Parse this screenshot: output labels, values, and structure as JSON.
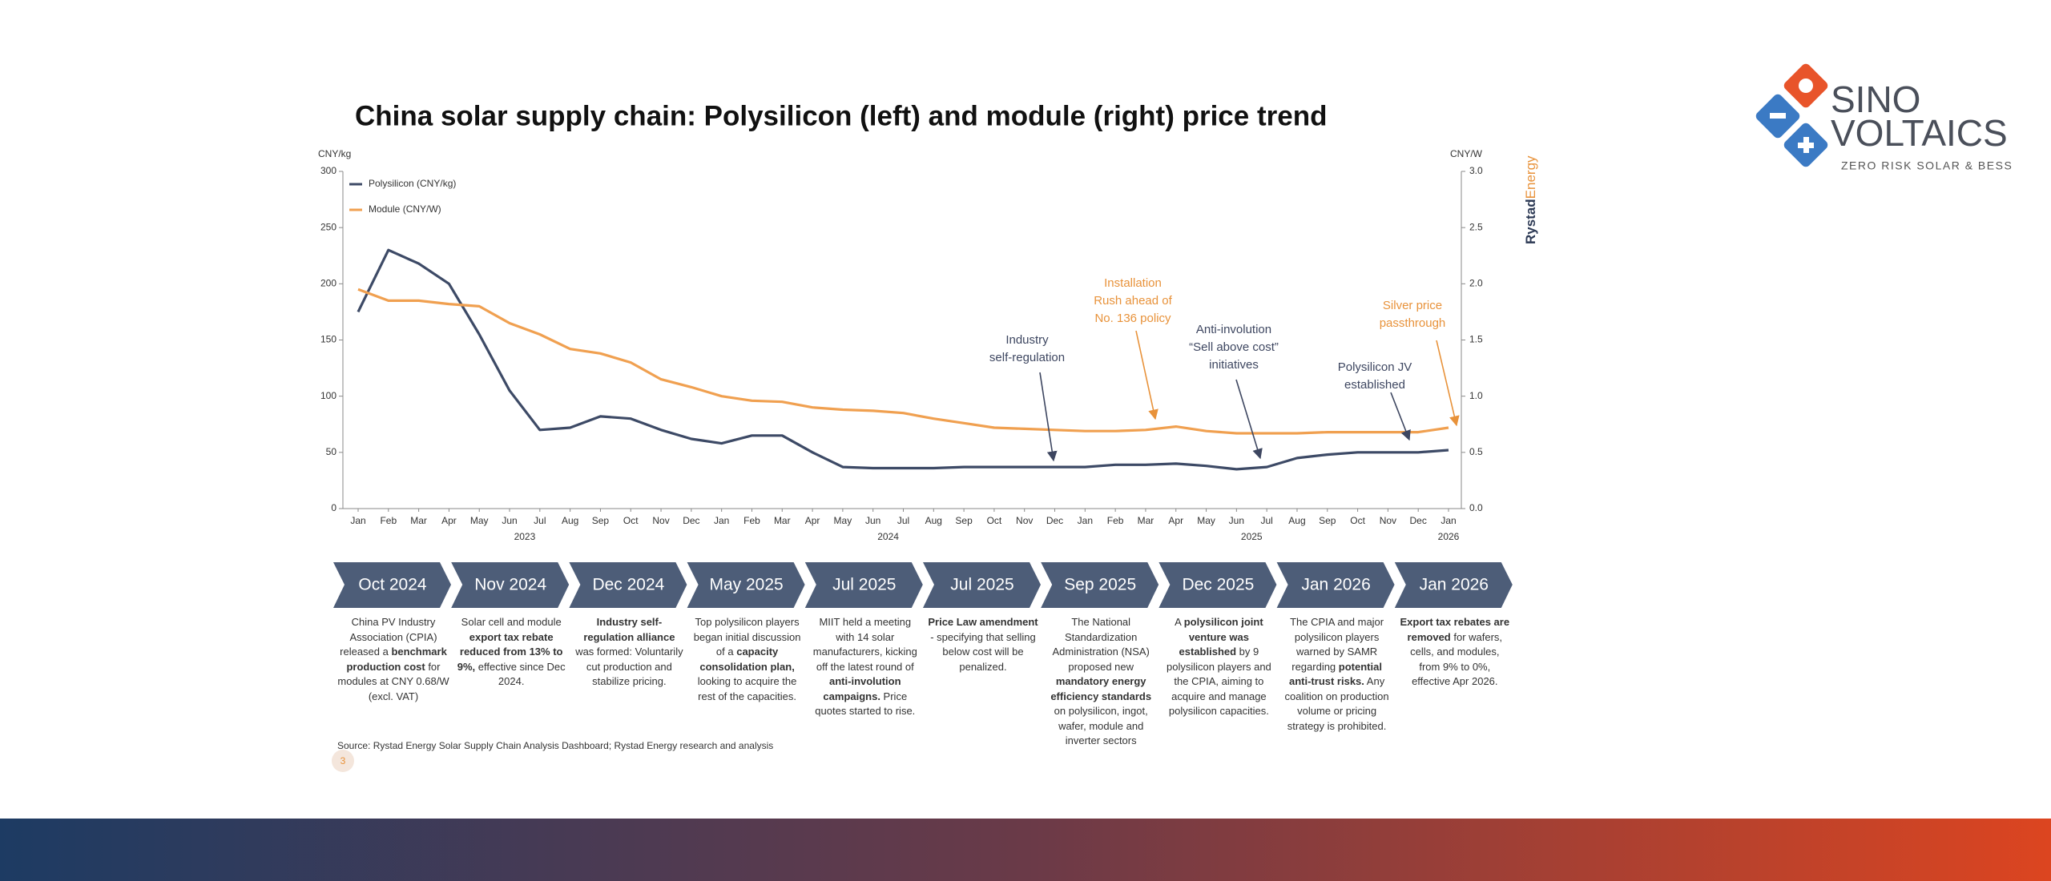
{
  "chart_data": {
    "type": "line",
    "title": "China solar supply chain: Polysilicon (left) and module (right) price trend",
    "y_label": "CNY/kg",
    "y2_label": "CNY/W",
    "categories": [
      "Jan",
      "Feb",
      "Mar",
      "Apr",
      "May",
      "Jun",
      "Jul",
      "Aug",
      "Sep",
      "Oct",
      "Nov",
      "Dec",
      "Jan",
      "Feb",
      "Mar",
      "Apr",
      "May",
      "Jun",
      "Jul",
      "Aug",
      "Sep",
      "Oct",
      "Nov",
      "Dec",
      "Jan",
      "Feb",
      "Mar",
      "Apr",
      "May",
      "Jun",
      "Jul",
      "Aug",
      "Sep",
      "Oct",
      "Nov",
      "Dec",
      "Jan"
    ],
    "year_labels": [
      "2023",
      "2024",
      "2025",
      "2026"
    ],
    "series": [
      {
        "name": "Polysilicon (CNY/kg)",
        "color": "#3d4a66",
        "axis": "y",
        "values": [
          175,
          230,
          218,
          200,
          155,
          105,
          70,
          72,
          82,
          80,
          70,
          62,
          58,
          65,
          65,
          50,
          37,
          36,
          36,
          36,
          37,
          37,
          37,
          37,
          37,
          39,
          39,
          40,
          38,
          35,
          37,
          45,
          48,
          50,
          50,
          50,
          52
        ]
      },
      {
        "name": "Module (CNY/W)",
        "color": "#f0a050",
        "axis": "y2",
        "values": [
          1.95,
          1.85,
          1.85,
          1.82,
          1.8,
          1.65,
          1.55,
          1.42,
          1.38,
          1.3,
          1.15,
          1.08,
          1.0,
          0.96,
          0.95,
          0.9,
          0.88,
          0.87,
          0.85,
          0.8,
          0.76,
          0.72,
          0.71,
          0.7,
          0.69,
          0.69,
          0.7,
          0.73,
          0.69,
          0.67,
          0.67,
          0.67,
          0.68,
          0.68,
          0.68,
          0.68,
          0.72
        ]
      }
    ],
    "ylim": [
      0,
      300
    ],
    "yticks": [
      0,
      50,
      100,
      150,
      200,
      250,
      300
    ],
    "y2lim": [
      0,
      3
    ],
    "y2ticks": [
      {
        "value": 0,
        "label": "0.0"
      },
      0.5,
      {
        "value": 1,
        "label": "1.0"
      },
      1.5,
      {
        "value": 2,
        "label": "2.0"
      },
      2.5,
      {
        "value": 3,
        "label": "3.0"
      }
    ],
    "annotations": [
      {
        "lines": [
          "Industry",
          "self-regulation"
        ],
        "color": "#3d4660"
      },
      {
        "lines": [
          "Installation",
          "Rush ahead of",
          "No. 136 policy"
        ],
        "color": "#e8923a"
      },
      {
        "lines": [
          "Anti-involution",
          "“Sell above cost”",
          "initiatives"
        ],
        "color": "#3d4660"
      },
      {
        "lines": [
          "Polysilicon JV",
          "established"
        ],
        "color": "#3d4660"
      },
      {
        "lines": [
          "Silver price",
          "passthrough"
        ],
        "color": "#e8923a"
      }
    ]
  },
  "timeline": [
    {
      "date": "Oct 2024",
      "parts": [
        {
          "text": "China PV Industry Association (CPIA) released a ",
          "bold": false
        },
        {
          "text": "benchmark production cost",
          "bold": true
        },
        {
          "text": " for modules at CNY 0.68/W (excl. VAT)",
          "bold": false
        }
      ]
    },
    {
      "date": "Nov 2024",
      "parts": [
        {
          "text": "Solar cell and module ",
          "bold": false
        },
        {
          "text": "export tax rebate reduced from 13% to 9%,",
          "bold": true
        },
        {
          "text": " effective since Dec 2024.",
          "bold": false
        }
      ]
    },
    {
      "date": "Dec 2024",
      "parts": [
        {
          "text": "Industry self-regulation alliance",
          "bold": true
        },
        {
          "text": " was formed: Voluntarily cut production and stabilize pricing.",
          "bold": false
        }
      ]
    },
    {
      "date": "May 2025",
      "parts": [
        {
          "text": "Top polysilicon players began initial discussion of a ",
          "bold": false
        },
        {
          "text": "capacity consolidation plan,",
          "bold": true
        },
        {
          "text": " looking to acquire the rest of the capacities.",
          "bold": false
        }
      ]
    },
    {
      "date": "Jul 2025",
      "parts": [
        {
          "text": "MIIT held a meeting with 14 solar manufacturers, kicking off the latest round of ",
          "bold": false
        },
        {
          "text": "anti-involution campaigns.",
          "bold": true
        },
        {
          "text": " Price quotes started to rise.",
          "bold": false
        }
      ]
    },
    {
      "date": "Jul 2025",
      "parts": [
        {
          "text": "Price Law amendment",
          "bold": true
        },
        {
          "text": " - specifying that selling below cost will be penalized.",
          "bold": false
        }
      ]
    },
    {
      "date": "Sep 2025",
      "parts": [
        {
          "text": "The National Standardization Administration (NSA) proposed new ",
          "bold": false
        },
        {
          "text": "mandatory energy efficiency standards",
          "bold": true
        },
        {
          "text": " on polysilicon, ingot, wafer, module and inverter sectors",
          "bold": false
        }
      ]
    },
    {
      "date": "Dec 2025",
      "parts": [
        {
          "text": "A ",
          "bold": false
        },
        {
          "text": "polysilicon joint venture was established",
          "bold": true
        },
        {
          "text": " by 9 polysilicon players and the CPIA, aiming to acquire and manage polysilicon capacities.",
          "bold": false
        }
      ]
    },
    {
      "date": "Jan 2026",
      "parts": [
        {
          "text": "The CPIA and major polysilicon players warned by SAMR regarding ",
          "bold": false
        },
        {
          "text": "potential anti-trust risks.",
          "bold": true
        },
        {
          "text": " Any coalition on production volume or pricing strategy is prohibited.",
          "bold": false
        }
      ]
    },
    {
      "date": "Jan 2026",
      "parts": [
        {
          "text": "Export tax rebates are removed",
          "bold": true
        },
        {
          "text": " for wafers, cells, and modules, from 9% to 0%, effective Apr 2026.",
          "bold": false
        }
      ]
    }
  ],
  "source": "Source: Rystad Energy Solar Supply Chain Analysis Dashboard; Rystad Energy research and analysis",
  "page_number": "3",
  "brand": {
    "part1": "Rystad",
    "part2": "Energy"
  },
  "logo": {
    "line1": "SINO",
    "line2": "VOLTAICS",
    "tagline": "ZERO RISK SOLAR & BESS"
  }
}
